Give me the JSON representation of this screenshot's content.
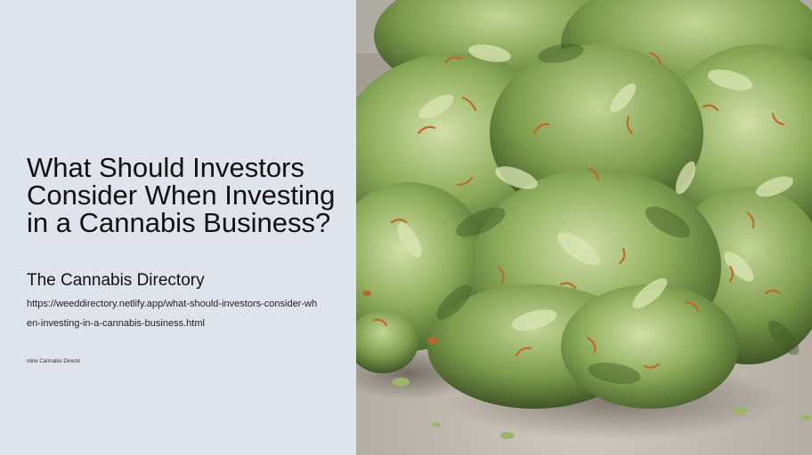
{
  "hero": {
    "title": "What Should Investors Consider When Investing in a Cannabis Business?",
    "site_name": "The Cannabis Directory",
    "url": "https://weeddirectory.netlify.app/what-should-investors-consider-when-investing-in-a-cannabis-business.html",
    "footer_text": "nline Cannabis Directo"
  },
  "photo": {
    "icon": "cannabis-buds-photo"
  },
  "colors": {
    "panel_bg": "#dfe3ec",
    "text": "#111111",
    "surface": "#b9b3aa",
    "bud_green": "#8fae5c",
    "bud_light": "#c9d8a0",
    "pistil_orange": "#c06a2a"
  }
}
